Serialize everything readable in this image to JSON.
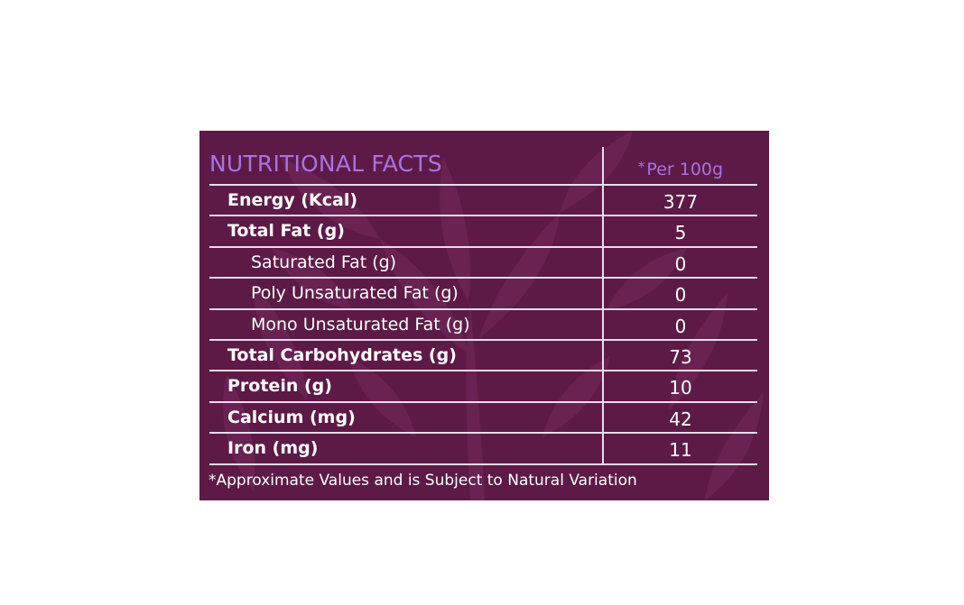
{
  "panel": {
    "title": "NUTRITIONAL FACTS",
    "per_star": "*",
    "per_label": "Per 100g",
    "background_color": "#5e1a47",
    "accent_color": "#a773e0",
    "rows": [
      {
        "label": "Energy (Kcal)",
        "value": "377",
        "level": "main"
      },
      {
        "label": "Total Fat (g)",
        "value": "5",
        "level": "main"
      },
      {
        "label": "Saturated Fat (g)",
        "value": "0",
        "level": "sub"
      },
      {
        "label": "Poly Unsaturated Fat (g)",
        "value": "0",
        "level": "sub"
      },
      {
        "label": "Mono Unsaturated Fat (g)",
        "value": "0",
        "level": "sub"
      },
      {
        "label": "Total Carbohydrates (g)",
        "value": "73",
        "level": "main"
      },
      {
        "label": "Protein (g)",
        "value": "10",
        "level": "main"
      },
      {
        "label": "Calcium (mg)",
        "value": "42",
        "level": "main"
      },
      {
        "label": "Iron (mg)",
        "value": "11",
        "level": "main"
      }
    ],
    "footnote": "*Approximate Values and is Subject to Natural Variation"
  }
}
